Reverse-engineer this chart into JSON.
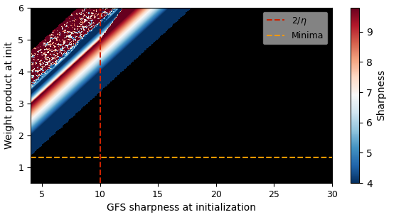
{
  "xlabel": "GFS sharpness at initialization",
  "ylabel": "Weight product at init",
  "colorbar_label": "Sharpness",
  "xlim": [
    4,
    30
  ],
  "ylim": [
    0.5,
    6.0
  ],
  "vmin": 4.0,
  "vmax": 9.8,
  "eta": 0.2,
  "two_over_eta": 10.0,
  "minima_y": 1.3,
  "red_dashed_color": "#cc2200",
  "orange_dashed_color": "#ff9900",
  "legend_label_red": "2/$\\eta$",
  "legend_label_orange": "Minima",
  "nx": 300,
  "ny": 220,
  "cmap": "RdBu_r",
  "n_steps": 800
}
